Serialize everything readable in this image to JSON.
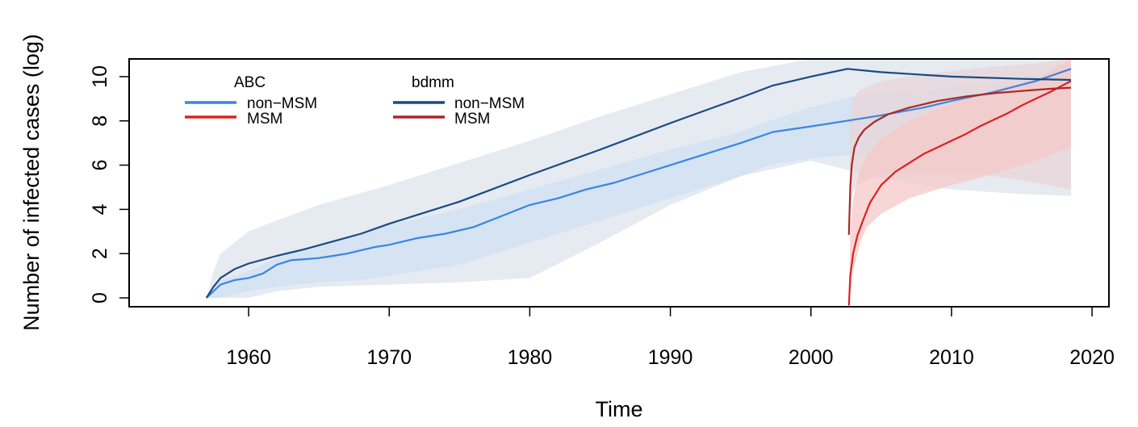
{
  "chart_data": {
    "type": "line",
    "xlabel": "Time",
    "ylabel": "Number of infected cases (log)",
    "xlim": [
      1951.5,
      2021.2
    ],
    "ylim": [
      -0.4,
      10.8
    ],
    "x_ticks": [
      1960,
      1970,
      1980,
      1990,
      2000,
      2010,
      2020
    ],
    "y_ticks": [
      0,
      2,
      4,
      6,
      8,
      10
    ],
    "grid": false,
    "legend": {
      "placement": "top-left",
      "groups": [
        {
          "title": "ABC",
          "entries": [
            "non−MSM",
            "MSM"
          ]
        },
        {
          "title": "bdmm",
          "entries": [
            "non−MSM",
            "MSM"
          ]
        }
      ]
    },
    "colors": {
      "abc_non_msm": "#3a86e0",
      "abc_msm": "#e02020",
      "bdmm_non_msm": "#1a4a80",
      "bdmm_msm": "#a82828",
      "abc_non_msm_band": "#cfe0f3",
      "abc_msm_band": "#f5c8c8",
      "bdmm_non_msm_band": "#dde3ec",
      "bdmm_msm_band": "#e8d5d8"
    },
    "series": [
      {
        "name": "non−MSM",
        "group": "ABC",
        "x": [
          1957.0,
          1957.5,
          1958,
          1959,
          1960,
          1961,
          1962,
          1963,
          1964,
          1965,
          1966,
          1967,
          1968,
          1969,
          1970,
          1972,
          1974,
          1976,
          1978,
          1980,
          1982,
          1984,
          1986,
          1988,
          1990,
          1992,
          1995,
          1997.3,
          2000,
          2003,
          2005,
          2008,
          2010,
          2013,
          2016,
          2018.5
        ],
        "y": [
          0.0,
          0.3,
          0.6,
          0.8,
          0.9,
          1.1,
          1.5,
          1.7,
          1.75,
          1.8,
          1.9,
          2.0,
          2.15,
          2.3,
          2.4,
          2.7,
          2.9,
          3.2,
          3.7,
          4.2,
          4.5,
          4.9,
          5.2,
          5.6,
          6.0,
          6.4,
          7.0,
          7.5,
          7.75,
          8.05,
          8.25,
          8.6,
          8.9,
          9.3,
          9.8,
          10.35
        ]
      },
      {
        "name": "MSM",
        "group": "ABC",
        "x": [
          2002.7,
          2002.8,
          2003.0,
          2003.3,
          2003.7,
          2004.2,
          2005.0,
          2006.0,
          2007.0,
          2008.0,
          2009.0,
          2010.0,
          2011.0,
          2012.0,
          2013.0,
          2014.0,
          2015.0,
          2016.0,
          2017.0,
          2018.5
        ],
        "y": [
          -0.35,
          1.0,
          2.0,
          2.8,
          3.5,
          4.3,
          5.1,
          5.7,
          6.1,
          6.5,
          6.8,
          7.1,
          7.4,
          7.75,
          8.05,
          8.35,
          8.7,
          9.0,
          9.3,
          9.8
        ]
      },
      {
        "name": "non−MSM",
        "group": "bdmm",
        "x": [
          1957.0,
          1957.5,
          1958,
          1959,
          1960,
          1962,
          1964,
          1966,
          1968,
          1970,
          1972,
          1975,
          1980,
          1985,
          1990,
          1995,
          1997.3,
          2000,
          2002.6,
          2005,
          2010,
          2015,
          2018.5
        ],
        "y": [
          0.0,
          0.5,
          0.9,
          1.3,
          1.55,
          1.9,
          2.2,
          2.55,
          2.9,
          3.35,
          3.75,
          4.35,
          5.55,
          6.7,
          7.9,
          9.05,
          9.6,
          10.0,
          10.35,
          10.2,
          10.0,
          9.9,
          9.85
        ]
      },
      {
        "name": "MSM",
        "group": "bdmm",
        "x": [
          2002.7,
          2002.8,
          2002.9,
          2003.1,
          2003.4,
          2003.8,
          2004.5,
          2005.5,
          2007.0,
          2009.0,
          2011.0,
          2013.0,
          2015.0,
          2017.0,
          2018.5
        ],
        "y": [
          2.85,
          5.0,
          6.0,
          6.8,
          7.25,
          7.6,
          7.95,
          8.3,
          8.6,
          8.9,
          9.1,
          9.25,
          9.35,
          9.45,
          9.5
        ]
      }
    ],
    "bands": [
      {
        "of": "bdmm non−MSM",
        "x": [
          1957.0,
          1957.5,
          1958,
          1959,
          1960,
          1962,
          1965,
          1970,
          1975,
          1980,
          1985,
          1990,
          1995,
          2000,
          2005,
          2010,
          2015,
          2018.5
        ],
        "lower": [
          0.0,
          0.0,
          0.0,
          0.0,
          0.0,
          0.3,
          0.5,
          0.6,
          0.7,
          0.9,
          2.5,
          4.2,
          5.5,
          6.2,
          5.4,
          4.9,
          4.7,
          4.6
        ],
        "upper": [
          0.0,
          1.2,
          2.0,
          2.5,
          3.0,
          3.5,
          4.2,
          5.1,
          6.1,
          7.1,
          8.2,
          9.2,
          10.2,
          10.8,
          10.8,
          10.8,
          10.8,
          10.8
        ]
      },
      {
        "of": "ABC non−MSM",
        "x": [
          1957.0,
          1958,
          1960,
          1962,
          1965,
          1968,
          1970,
          1975,
          1980,
          1985,
          1990,
          1995,
          1997,
          2000,
          2003,
          2008,
          2013,
          2018.5
        ],
        "lower": [
          0.0,
          0.0,
          0.3,
          0.5,
          0.7,
          0.8,
          1.0,
          1.5,
          2.5,
          3.5,
          4.5,
          5.5,
          6.0,
          6.3,
          6.5,
          6.7,
          6.9,
          7.0
        ],
        "upper": [
          0.0,
          0.8,
          1.2,
          1.8,
          2.4,
          2.9,
          3.3,
          4.0,
          4.9,
          5.8,
          6.7,
          7.5,
          8.0,
          8.6,
          9.1,
          9.4,
          9.7,
          10.4
        ]
      },
      {
        "of": "bdmm MSM",
        "x": [
          2002.7,
          2002.8,
          2003.0,
          2003.5,
          2005.0,
          2008.0,
          2012.0,
          2016.0,
          2018.5
        ],
        "lower": [
          2.85,
          4.0,
          4.8,
          5.2,
          5.6,
          5.7,
          5.6,
          5.2,
          4.9
        ],
        "upper": [
          2.85,
          8.2,
          9.0,
          9.4,
          9.8,
          10.1,
          10.4,
          10.6,
          10.8
        ]
      },
      {
        "of": "ABC MSM",
        "x": [
          2002.7,
          2002.8,
          2003.0,
          2003.5,
          2004.0,
          2005.0,
          2007.0,
          2010.0,
          2013.0,
          2016.0,
          2018.5
        ],
        "lower": [
          -0.35,
          0.2,
          1.2,
          2.5,
          3.2,
          3.8,
          4.5,
          5.1,
          5.6,
          6.2,
          6.8
        ],
        "upper": [
          -0.35,
          3.0,
          4.5,
          5.8,
          6.5,
          7.2,
          8.0,
          8.8,
          9.4,
          9.9,
          10.8
        ]
      }
    ]
  }
}
